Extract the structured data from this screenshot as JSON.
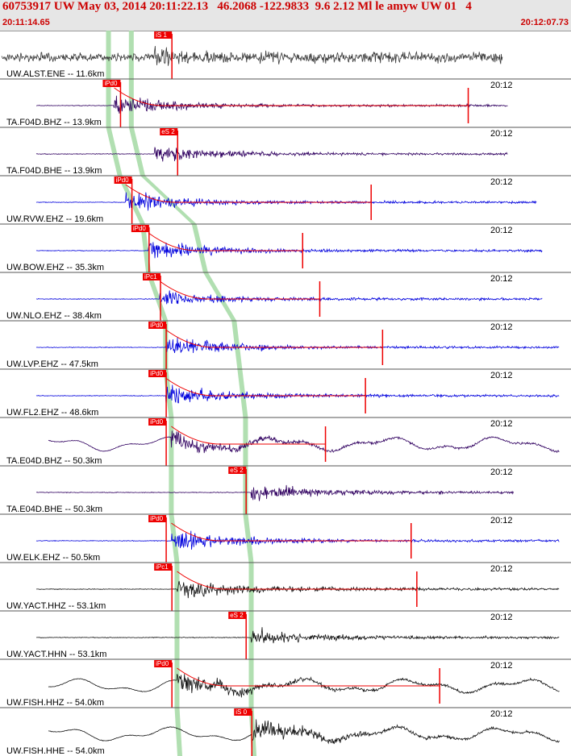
{
  "header": {
    "title": "60753917 UW May 03, 2014 20:11:22.13   46.2068 -122.9833  9.6 2.12 Ml le amyw UW 01   4",
    "start_time": "20:11:14.65",
    "end_time": "20:12:07.73"
  },
  "colors": {
    "pick_red": "#ee0000",
    "band_green": "#a8dca8",
    "trace_black": "#111111",
    "trace_blue": "#0000dd",
    "trace_purple": "#300060",
    "trace_gray": "#3a3a3a"
  },
  "traces": [
    {
      "label": "UW.ALST.ENE -- 11.6km",
      "time": "",
      "pick": "iS 1",
      "pick_pos": 0.27,
      "p_band": 0.19,
      "s_band": 0.23,
      "onset": 0.27,
      "end": 0.88,
      "color": "gray",
      "style": "dense",
      "coda_red": 0,
      "amp": 0.8
    },
    {
      "label": "TA.F04D.BHZ -- 13.9km",
      "time": "20:12",
      "pick": "iPd0",
      "pick_pos": 0.18,
      "p_band": 0.19,
      "s_band": 0.23,
      "onset": 0.2,
      "end": 0.89,
      "color": "purple",
      "style": "burst",
      "coda_red": 0.82,
      "amp": 0.7
    },
    {
      "label": "TA.F04D.BHE -- 13.9km",
      "time": "20:12",
      "pick": "eS 2",
      "pick_pos": 0.28,
      "p_band": 0.19,
      "s_band": 0.23,
      "onset": 0.27,
      "end": 0.89,
      "color": "purple",
      "style": "burst",
      "coda_red": 0,
      "amp": 0.6
    },
    {
      "label": "UW.RVW.EHZ -- 19.6km",
      "time": "20:12",
      "pick": "iPd0",
      "pick_pos": 0.2,
      "p_band": 0.21,
      "s_band": 0.25,
      "onset": 0.22,
      "end": 0.94,
      "color": "blue",
      "style": "burst",
      "coda_red": 0.65,
      "amp": 0.7
    },
    {
      "label": "UW.BOW.EHZ -- 35.3km",
      "time": "20:12",
      "pick": "iPd0",
      "pick_pos": 0.23,
      "p_band": 0.25,
      "s_band": 0.34,
      "onset": 0.26,
      "end": 0.95,
      "color": "blue",
      "style": "burst",
      "coda_red": 0.53,
      "amp": 0.7
    },
    {
      "label": "UW.NLO.EHZ -- 38.4km",
      "time": "20:12",
      "pick": "iPc1",
      "pick_pos": 0.25,
      "p_band": 0.26,
      "s_band": 0.36,
      "onset": 0.28,
      "end": 0.95,
      "color": "blue",
      "style": "burst",
      "coda_red": 0.56,
      "amp": 0.5
    },
    {
      "label": "UW.LVP.EHZ -- 47.5km",
      "time": "20:12",
      "pick": "iPd0",
      "pick_pos": 0.26,
      "p_band": 0.29,
      "s_band": 0.41,
      "onset": 0.29,
      "end": 0.98,
      "color": "blue",
      "style": "burst",
      "coda_red": 0.67,
      "amp": 0.75
    },
    {
      "label": "UW.FL2.EHZ -- 48.6km",
      "time": "20:12",
      "pick": "iPd0",
      "pick_pos": 0.26,
      "p_band": 0.29,
      "s_band": 0.42,
      "onset": 0.29,
      "end": 0.98,
      "color": "blue",
      "style": "burst",
      "coda_red": 0.64,
      "amp": 0.7
    },
    {
      "label": "TA.E04D.BHZ -- 50.3km",
      "time": "20:12",
      "pick": "iPd0",
      "pick_pos": 0.26,
      "p_band": 0.3,
      "s_band": 0.43,
      "onset": 0.3,
      "end": 0.98,
      "color": "purple",
      "style": "wave",
      "coda_red": 0.57,
      "amp": 0.6
    },
    {
      "label": "TA.E04D.BHE -- 50.3km",
      "time": "20:12",
      "pick": "eS 2",
      "pick_pos": 0.4,
      "p_band": 0.3,
      "s_band": 0.43,
      "onset": 0.44,
      "end": 0.9,
      "color": "purple",
      "style": "burst",
      "coda_red": 0,
      "amp": 0.6
    },
    {
      "label": "UW.ELK.EHZ -- 50.5km",
      "time": "20:12",
      "pick": "iPd0",
      "pick_pos": 0.26,
      "p_band": 0.3,
      "s_band": 0.43,
      "onset": 0.3,
      "end": 0.98,
      "color": "blue",
      "style": "burst",
      "coda_red": 0.72,
      "amp": 0.8
    },
    {
      "label": "UW.YACT.HHZ -- 53.1km",
      "time": "20:12",
      "pick": "iPc1",
      "pick_pos": 0.27,
      "p_band": 0.31,
      "s_band": 0.44,
      "onset": 0.31,
      "end": 0.98,
      "color": "black",
      "style": "burst",
      "coda_red": 0.73,
      "amp": 0.8
    },
    {
      "label": "UW.YACT.HHN -- 53.1km",
      "time": "20:12",
      "pick": "eS 2",
      "pick_pos": 0.4,
      "p_band": 0.31,
      "s_band": 0.44,
      "onset": 0.44,
      "end": 0.98,
      "color": "black",
      "style": "burst",
      "coda_red": 0,
      "amp": 0.6
    },
    {
      "label": "UW.FISH.HHZ -- 54.0km",
      "time": "20:12",
      "pick": "iPd0",
      "pick_pos": 0.27,
      "p_band": 0.31,
      "s_band": 0.44,
      "onset": 0.31,
      "end": 0.98,
      "color": "black",
      "style": "wave",
      "coda_red": 0.77,
      "amp": 0.8
    },
    {
      "label": "UW.FISH.HHE -- 54.0km",
      "time": "20:12",
      "pick": "iS 0",
      "pick_pos": 0.41,
      "p_band": 0.31,
      "s_band": 0.44,
      "onset": 0.44,
      "end": 0.98,
      "color": "black",
      "style": "wave",
      "coda_red": 0,
      "amp": 0.8
    }
  ]
}
